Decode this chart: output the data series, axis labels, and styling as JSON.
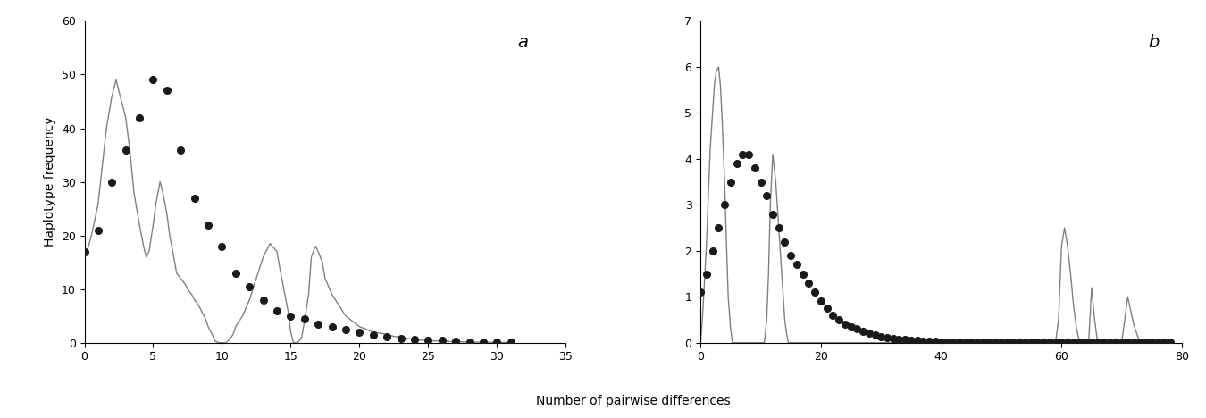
{
  "panel_a": {
    "label": "a",
    "xlim": [
      0,
      35
    ],
    "ylim": [
      0,
      60
    ],
    "xticks": [
      0,
      5,
      10,
      15,
      20,
      25,
      30,
      35
    ],
    "yticks": [
      0,
      10,
      20,
      30,
      40,
      50,
      60
    ],
    "observed_x": [
      0,
      1,
      2,
      3,
      4,
      5,
      6,
      7,
      8,
      9,
      10,
      11,
      12,
      13,
      14,
      15,
      16,
      17,
      18,
      19,
      20,
      21,
      22,
      23,
      24,
      25,
      26,
      27,
      28,
      29,
      30,
      31
    ],
    "observed_y": [
      17,
      21,
      30,
      36,
      42,
      49,
      47,
      36,
      27,
      22,
      18,
      13,
      10.5,
      8,
      6,
      5,
      4.5,
      3.5,
      3,
      2.5,
      2,
      1.5,
      1.2,
      0.8,
      0.6,
      0.5,
      0.4,
      0.3,
      0.2,
      0.15,
      0.1,
      0.05
    ],
    "expected_x": [
      0,
      0.3,
      0.6,
      1,
      1.3,
      1.6,
      2,
      2.3,
      2.6,
      3,
      3.3,
      3.6,
      4,
      4.3,
      4.5,
      4.7,
      5,
      5.2,
      5.5,
      5.7,
      6,
      6.2,
      6.5,
      6.7,
      7,
      7.3,
      7.5,
      7.8,
      8,
      8.3,
      8.5,
      8.8,
      9,
      9.3,
      9.5,
      9.8,
      10,
      10.3,
      10.5,
      10.8,
      11,
      11.5,
      12,
      12.5,
      13,
      13.5,
      14,
      14.2,
      14.5,
      14.8,
      15,
      15.2,
      15.5,
      15.8,
      16,
      16.3,
      16.5,
      16.8,
      17,
      17.3,
      17.5,
      18,
      18.5,
      19,
      19.5,
      20,
      20.5,
      21,
      21.5,
      22,
      22.5,
      23,
      23.5,
      24,
      24.5,
      25,
      26,
      27,
      28,
      29,
      30,
      31
    ],
    "expected_y": [
      16,
      18,
      21,
      26,
      33,
      40,
      46,
      49,
      46,
      42,
      36,
      28,
      22,
      18,
      16,
      17,
      22,
      26,
      30,
      28,
      24,
      20,
      16,
      13,
      12,
      11,
      10,
      9,
      8,
      7,
      6,
      4.5,
      3,
      1.5,
      0.3,
      0,
      0,
      0,
      0.5,
      1.5,
      3,
      5,
      8,
      12,
      16,
      18.5,
      17,
      14,
      10,
      6,
      2,
      0,
      0,
      1,
      4,
      9,
      16,
      18,
      17,
      15,
      12,
      9,
      7,
      5,
      4,
      3,
      2.5,
      2,
      1.8,
      1.5,
      1.2,
      1,
      0.8,
      0.6,
      0.5,
      0.4,
      0.3,
      0.2,
      0.15,
      0.1,
      0.08,
      0.05
    ]
  },
  "panel_b": {
    "label": "b",
    "xlim": [
      0,
      80
    ],
    "ylim": [
      0,
      7
    ],
    "xticks": [
      0,
      20,
      40,
      60,
      80
    ],
    "yticks": [
      0,
      1,
      2,
      3,
      4,
      5,
      6,
      7
    ],
    "observed_x": [
      0,
      1,
      2,
      3,
      4,
      5,
      6,
      7,
      8,
      9,
      10,
      11,
      12,
      13,
      14,
      15,
      16,
      17,
      18,
      19,
      20,
      21,
      22,
      23,
      24,
      25,
      26,
      27,
      28,
      29,
      30,
      31,
      32,
      33,
      34,
      35,
      36,
      37,
      38,
      39,
      40,
      41,
      42,
      43,
      44,
      45,
      46,
      47,
      48,
      49,
      50,
      51,
      52,
      53,
      54,
      55,
      56,
      57,
      58,
      59,
      60,
      61,
      62,
      63,
      64,
      65,
      66,
      67,
      68,
      69,
      70,
      71,
      72,
      73,
      74,
      75,
      76,
      77,
      78
    ],
    "observed_y": [
      1.1,
      1.5,
      2.0,
      2.5,
      3.0,
      3.5,
      3.9,
      4.1,
      4.1,
      3.8,
      3.5,
      3.2,
      2.8,
      2.5,
      2.2,
      1.9,
      1.7,
      1.5,
      1.3,
      1.1,
      0.9,
      0.75,
      0.6,
      0.5,
      0.4,
      0.35,
      0.3,
      0.25,
      0.2,
      0.17,
      0.14,
      0.12,
      0.1,
      0.08,
      0.07,
      0.06,
      0.05,
      0.04,
      0.03,
      0.03,
      0.02,
      0.02,
      0.02,
      0.02,
      0.02,
      0.02,
      0.02,
      0.02,
      0.02,
      0.02,
      0.02,
      0.02,
      0.02,
      0.02,
      0.02,
      0.02,
      0.02,
      0.02,
      0.02,
      0.02,
      0.02,
      0.02,
      0.02,
      0.02,
      0.02,
      0.02,
      0.02,
      0.02,
      0.02,
      0.02,
      0.02,
      0.02,
      0.02,
      0.02,
      0.02,
      0.02,
      0.02,
      0.02,
      0.02
    ],
    "expected_x": [
      0,
      0.3,
      0.6,
      1.0,
      1.3,
      1.6,
      2.0,
      2.3,
      2.6,
      3.0,
      3.3,
      3.6,
      4.0,
      4.3,
      4.6,
      5.0,
      5.3,
      5.6,
      6.0,
      6.3,
      6.6,
      7.0,
      7.3,
      7.6,
      8.0,
      8.3,
      8.6,
      9.0,
      9.3,
      9.6,
      10.0,
      10.3,
      10.6,
      11.0,
      11.3,
      11.6,
      12.0,
      12.5,
      13.0,
      13.5,
      14.0,
      14.3,
      14.6,
      15.0,
      15.3,
      15.6,
      16.0,
      16.3,
      16.6,
      17.0,
      17.5,
      18.0,
      18.5,
      19.0,
      20.0,
      25.0,
      30.0,
      35.0,
      40.0,
      45.0,
      50.0,
      55.0,
      59.0,
      59.5,
      60.0,
      60.5,
      61.0,
      61.5,
      62.0,
      62.5,
      63.0,
      63.5,
      64.0,
      64.5,
      65.0,
      65.5,
      66.0,
      67.0,
      68.0,
      69.0,
      70.0,
      71.0,
      72.0,
      73.0,
      74.0,
      75.0,
      76.0,
      77.0,
      78.0
    ],
    "expected_y": [
      0,
      0.5,
      1.2,
      2.2,
      3.2,
      4.2,
      5.0,
      5.6,
      5.9,
      6.0,
      5.6,
      4.8,
      3.5,
      2.2,
      1.0,
      0.3,
      0.0,
      0.0,
      0.0,
      0.0,
      0.0,
      0.0,
      0.0,
      0.0,
      0.0,
      0.0,
      0.0,
      0.0,
      0.0,
      0.0,
      0.0,
      0.0,
      0.0,
      0.5,
      1.5,
      3.0,
      4.1,
      3.5,
      2.5,
      1.5,
      0.5,
      0.2,
      0.0,
      0.0,
      0.0,
      0.0,
      0.0,
      0.0,
      0.0,
      0.0,
      0.0,
      0.0,
      0.0,
      0.0,
      0.0,
      0.0,
      0.0,
      0.0,
      0.0,
      0.0,
      0.0,
      0.0,
      0.0,
      0.5,
      2.1,
      2.5,
      2.1,
      1.5,
      0.8,
      0.3,
      0.0,
      0.0,
      0.0,
      0.0,
      1.2,
      0.5,
      0.0,
      0.0,
      0.0,
      0.0,
      0.0,
      1.0,
      0.4,
      0.0,
      0.0,
      0.0,
      0.0,
      0.0,
      0.0
    ]
  },
  "ylabel": "Haplotype frequency",
  "xlabel": "Number of pairwise differences",
  "dot_color": "#1a1a1a",
  "line_color": "#808080",
  "background_color": "#ffffff"
}
